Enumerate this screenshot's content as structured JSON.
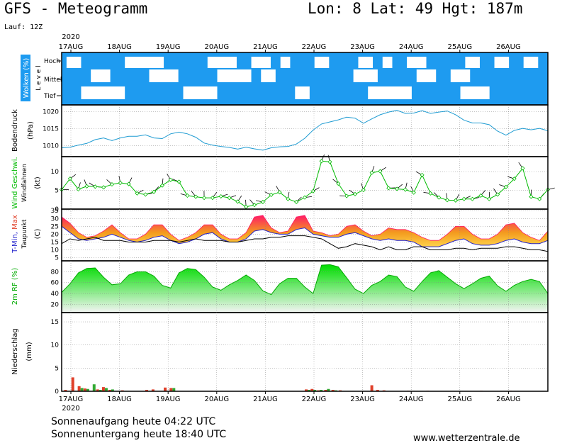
{
  "header": {
    "title": "GFS - Meteogramm",
    "location": "Lon: 8 Lat: 49 Hgt: 187m",
    "run": "Lauf: 12Z"
  },
  "footer": {
    "sunrise": "Sonnenaufgang heute 04:22 UTC",
    "sunset": "Sonnenuntergang heute 18:40 UTC",
    "website": "www.wetterzentrale.de"
  },
  "colors": {
    "cloud_bg": "#1e9bf0",
    "pressure_line": "#1e9bd2",
    "wind_line": "#00bb00",
    "dewpoint_line": "#000000",
    "tmin_line": "#2222cc",
    "tmax_top": "#ff1a66",
    "tmax_mid": "#f39b1e",
    "tmax_low": "#ffd24a",
    "rh_fill_top": "#00dd00",
    "rh_fill_bottom": "#f4f4f4",
    "precip_red": "#e0402a",
    "precip_green": "#33aa33"
  },
  "chart_data": [
    {
      "type": "heatmap",
      "panel": "clouds",
      "ylabel": "Wolken (%)",
      "ylabel2": "Level",
      "levels": [
        "Hoch",
        "Mittel",
        "Tief"
      ],
      "year_label": "2020",
      "day_labels": [
        "17AUG",
        "18AUG",
        "19AUG",
        "20AUG",
        "21AUG",
        "22AUG",
        "23AUG",
        "24AUG",
        "25AUG",
        "26AUG"
      ],
      "note": "mostly blue (cloudy) with scattered white (clear) gaps",
      "clear_gaps": {
        "Hoch": [
          [
            0.1,
            0.4
          ],
          [
            1.3,
            2.1
          ],
          [
            3.0,
            3.6
          ],
          [
            3.9,
            4.3
          ],
          [
            4.5,
            4.7
          ],
          [
            5.2,
            5.5
          ],
          [
            6.1,
            6.4
          ],
          [
            6.6,
            6.8
          ],
          [
            7.1,
            7.5
          ],
          [
            8.3,
            8.6
          ],
          [
            8.9,
            9.2
          ],
          [
            9.5,
            9.8
          ]
        ],
        "Mittel": [
          [
            0.6,
            1.0
          ],
          [
            1.8,
            2.4
          ],
          [
            3.2,
            3.9
          ],
          [
            4.1,
            4.4
          ],
          [
            6.0,
            6.5
          ],
          [
            7.3,
            7.7
          ],
          [
            8.0,
            8.4
          ]
        ],
        "Tief": [
          [
            0.4,
            1.3
          ],
          [
            2.5,
            3.2
          ],
          [
            4.8,
            5.1
          ],
          [
            6.3,
            7.2
          ],
          [
            8.2,
            8.8
          ]
        ]
      }
    },
    {
      "type": "line",
      "panel": "pressure",
      "ylabel": "Bodendruck",
      "unit": "(hPa)",
      "yticks": [
        1010,
        1015,
        1020
      ],
      "ylim": [
        1006.8,
        1022
      ],
      "series": [
        {
          "values": [
            1009.4,
            1009.6,
            1010.2,
            1010.7,
            1011.8,
            1012.3,
            1011.5,
            1012.3,
            1012.8,
            1012.8,
            1013.2,
            1012.3,
            1012.1,
            1013.5,
            1014.0,
            1013.5,
            1012.5,
            1010.8,
            1010.2,
            1009.8,
            1009.5,
            1009.0,
            1009.6,
            1009.1,
            1008.7,
            1009.4,
            1009.7,
            1009.8,
            1010.5,
            1012.2,
            1014.6,
            1016.4,
            1017.0,
            1017.6,
            1018.4,
            1018.1,
            1016.6,
            1017.9,
            1019.1,
            1019.9,
            1020.4,
            1019.5,
            1019.6,
            1020.3,
            1019.5,
            1019.9,
            1020.2,
            1019.1,
            1017.5,
            1016.7,
            1016.7,
            1016.2,
            1014.3,
            1013.1,
            1014.5,
            1015.1,
            1014.7,
            1015.1,
            1014.4
          ]
        }
      ]
    },
    {
      "type": "line",
      "panel": "wind",
      "ylabel": "Wind Geschwi.",
      "ylabel2": "Windfahnen",
      "unit": "(kt)",
      "yticks": [
        0,
        5,
        10
      ],
      "ylim": [
        0,
        14
      ],
      "series": [
        {
          "name": "Wind Geschwi.",
          "values": [
            5.2,
            8.1,
            5.3,
            6.1,
            6.0,
            5.8,
            6.6,
            7.0,
            6.7,
            4.2,
            3.9,
            4.6,
            6.3,
            7.8,
            7.3,
            3.6,
            3.3,
            3.0,
            3.0,
            3.4,
            3.0,
            2.0,
            0.6,
            1.1,
            1.9,
            3.8,
            4.5,
            2.7,
            1.9,
            3.1,
            4.8,
            12.8,
            12.6,
            6.8,
            3.5,
            4.0,
            5.1,
            9.7,
            10.1,
            5.6,
            5.4,
            5.2,
            4.4,
            9.1,
            4.2,
            3.1,
            2.4,
            2.3,
            2.7,
            2.7,
            3.6,
            2.7,
            3.9,
            5.9,
            8.1,
            10.9,
            3.3,
            2.7,
            5.2
          ]
        }
      ]
    },
    {
      "type": "area",
      "panel": "temperature",
      "ylabel": "T-Min, Max",
      "ylabel2": "Taupunkt",
      "unit": "(C)",
      "yticks": [
        5,
        10,
        15,
        20,
        25,
        30,
        35
      ],
      "ylim": [
        3,
        36
      ],
      "series": [
        {
          "name": "Max",
          "values": [
            31,
            27,
            21,
            18,
            19,
            22,
            26,
            21,
            17,
            17,
            20,
            26,
            26,
            20,
            16,
            18,
            21,
            26,
            26,
            20,
            17,
            17,
            21,
            31,
            32,
            24,
            21,
            22,
            31,
            32,
            22,
            21,
            19,
            20,
            25,
            26,
            22,
            19,
            20,
            24,
            23,
            23,
            21,
            18,
            16,
            16,
            20,
            25,
            25,
            20,
            17,
            17,
            20,
            26,
            27,
            21,
            18,
            16,
            22
          ]
        },
        {
          "name": "Min",
          "values": [
            25,
            21,
            17,
            16,
            17,
            18,
            20,
            18,
            16,
            15,
            16,
            18,
            19,
            16,
            14,
            15,
            17,
            20,
            21,
            17,
            15,
            15,
            17,
            22,
            23,
            21,
            20,
            20,
            23,
            24,
            20,
            19,
            18,
            18,
            20,
            21,
            19,
            17,
            16,
            17,
            16,
            16,
            15,
            12,
            12,
            12,
            14,
            16,
            17,
            14,
            13,
            13,
            14,
            16,
            17,
            15,
            14,
            14,
            16
          ]
        },
        {
          "name": "Taupunkt",
          "values": [
            14,
            17,
            16,
            17,
            18,
            16,
            16,
            16,
            15,
            15,
            15,
            16,
            16,
            16,
            15,
            16,
            17,
            16,
            16,
            16,
            15,
            15,
            16,
            17,
            17,
            18,
            18,
            19,
            19,
            19,
            18,
            17,
            14,
            11,
            12,
            14,
            13,
            12,
            10,
            12,
            10,
            10,
            12,
            12,
            10,
            10,
            10,
            11,
            11,
            10,
            11,
            11,
            11,
            12,
            12,
            11,
            10,
            10,
            9
          ]
        }
      ]
    },
    {
      "type": "area",
      "panel": "humidity",
      "ylabel": "2m RF (%)",
      "yticks": [
        20,
        40,
        60,
        80
      ],
      "ylim": [
        5,
        100
      ],
      "series": [
        {
          "name": "2m RF",
          "values": [
            42,
            58,
            78,
            86,
            87,
            70,
            56,
            58,
            74,
            80,
            80,
            72,
            55,
            50,
            78,
            86,
            84,
            70,
            52,
            46,
            56,
            64,
            74,
            64,
            45,
            38,
            58,
            68,
            68,
            52,
            40,
            92,
            93,
            89,
            69,
            48,
            40,
            55,
            62,
            74,
            71,
            52,
            44,
            62,
            78,
            82,
            70,
            58,
            49,
            58,
            68,
            72,
            54,
            44,
            55,
            62,
            66,
            62,
            40
          ]
        }
      ]
    },
    {
      "type": "bar",
      "panel": "precipitation",
      "ylabel": "Niederschlag",
      "unit": "(mm)",
      "yticks": [
        0,
        5,
        10,
        15
      ],
      "ylim": [
        0,
        17
      ],
      "year_label": "2020",
      "day_labels": [
        "17AUG",
        "18AUG",
        "19AUG",
        "20AUG",
        "21AUG",
        "22AUG",
        "23AUG",
        "24AUG",
        "25AUG",
        "26AUG"
      ],
      "bars": [
        {
          "x": 0.05,
          "red": 0.3,
          "green": 0.0
        },
        {
          "x": 0.2,
          "red": 3.0,
          "green": 0.0
        },
        {
          "x": 0.33,
          "red": 1.1,
          "green": 0.7
        },
        {
          "x": 0.45,
          "red": 0.6,
          "green": 0.5
        },
        {
          "x": 0.58,
          "red": 0.0,
          "green": 1.5
        },
        {
          "x": 0.71,
          "red": 0.4,
          "green": 0.3
        },
        {
          "x": 0.83,
          "red": 0.9,
          "green": 0.7
        },
        {
          "x": 0.96,
          "red": 0.3,
          "green": 0.4
        },
        {
          "x": 1.22,
          "red": 0.2,
          "green": 0.0
        },
        {
          "x": 1.72,
          "red": 0.3,
          "green": 0.0
        },
        {
          "x": 1.85,
          "red": 0.4,
          "green": 0.0
        },
        {
          "x": 2.1,
          "red": 0.8,
          "green": 0.0
        },
        {
          "x": 2.22,
          "red": 0.7,
          "green": 0.7
        },
        {
          "x": 3.05,
          "red": 0.1,
          "green": 0.0
        },
        {
          "x": 5.0,
          "red": 0.4,
          "green": 0.3
        },
        {
          "x": 5.12,
          "red": 0.5,
          "green": 0.3
        },
        {
          "x": 5.25,
          "red": 0.2,
          "green": 0.3
        },
        {
          "x": 5.4,
          "red": 0.3,
          "green": 0.5
        },
        {
          "x": 5.55,
          "red": 0.3,
          "green": 0.2
        },
        {
          "x": 5.7,
          "red": 0.2,
          "green": 0.0
        },
        {
          "x": 6.35,
          "red": 1.3,
          "green": 0.0
        },
        {
          "x": 6.47,
          "red": 0.3,
          "green": 0.0
        },
        {
          "x": 6.6,
          "red": 0.2,
          "green": 0.0
        },
        {
          "x": 7.1,
          "red": 0.1,
          "green": 0.0
        },
        {
          "x": 7.5,
          "red": 0.1,
          "green": 0.0
        },
        {
          "x": 8.6,
          "red": 0.1,
          "green": 0.0
        },
        {
          "x": 9.2,
          "red": 0.1,
          "green": 0.0
        }
      ]
    }
  ]
}
